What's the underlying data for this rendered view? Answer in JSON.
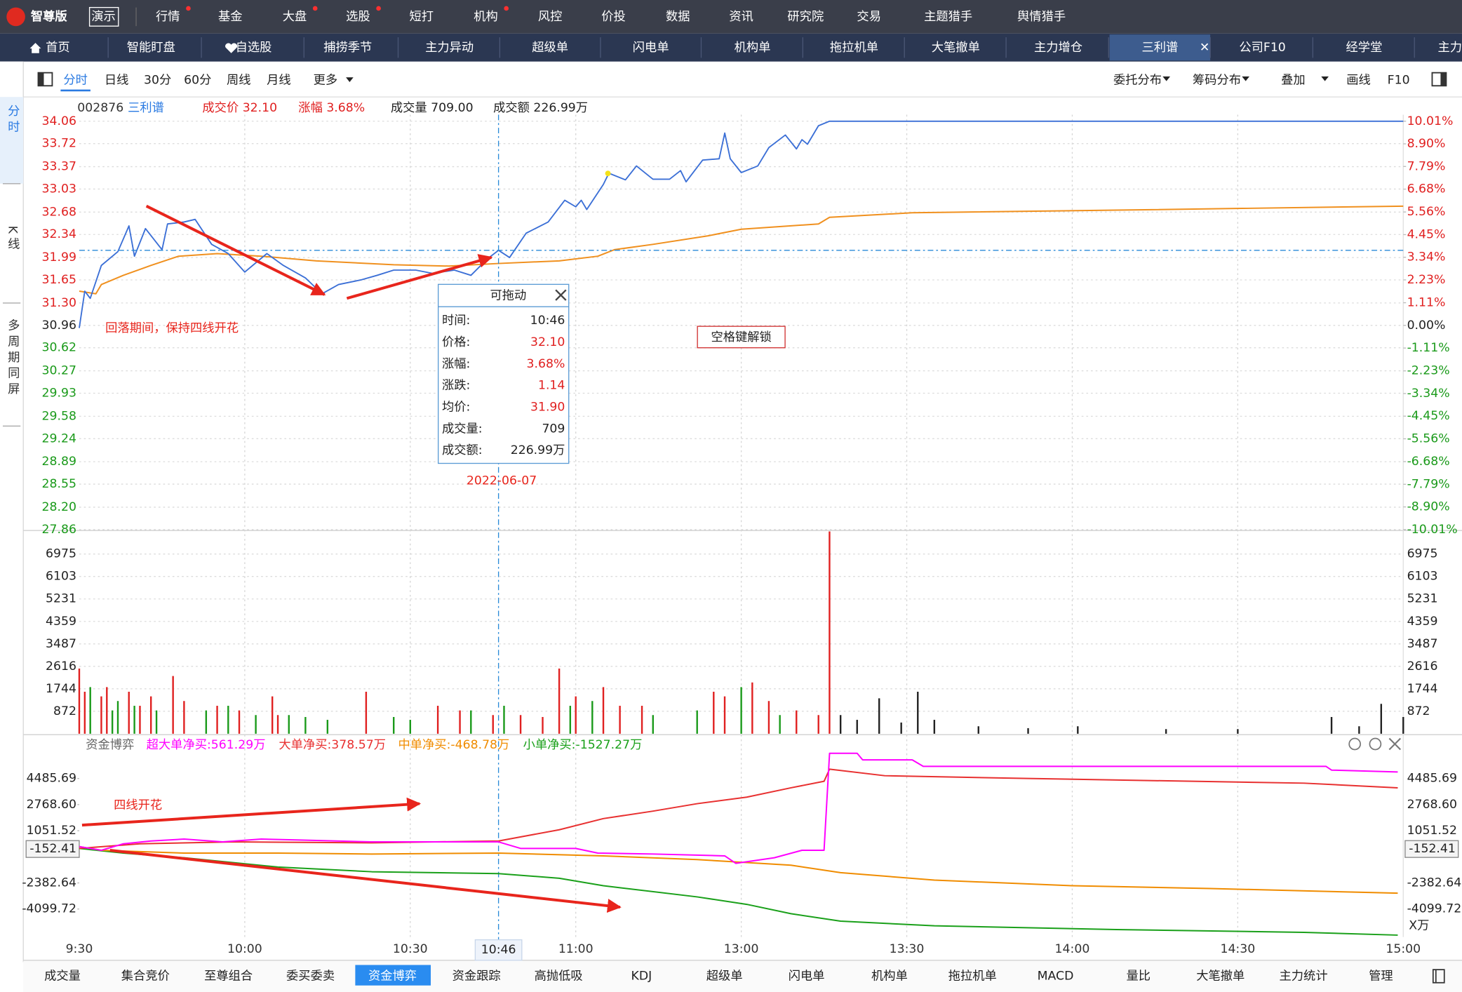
{
  "menu": {
    "logo": "智尊版",
    "badge": "演示",
    "items": [
      {
        "label": "行情",
        "dot": true
      },
      {
        "label": "基金"
      },
      {
        "label": "大盘",
        "dot": true
      },
      {
        "label": "选股",
        "dot": true
      },
      {
        "label": "短打"
      },
      {
        "label": "机构",
        "dot": true
      },
      {
        "label": "风控"
      },
      {
        "label": "价投"
      },
      {
        "label": "数据"
      },
      {
        "label": "资讯"
      },
      {
        "label": "研究院"
      },
      {
        "label": "交易"
      },
      {
        "label": "主题猎手"
      },
      {
        "label": "舆情猎手"
      }
    ]
  },
  "tabs": {
    "items": [
      "首页",
      "智能盯盘",
      "自选股",
      "捕捞季节",
      "主力异动",
      "超级单",
      "闪电单",
      "机构单",
      "拖拉机单",
      "大笔撤单",
      "主力增仓",
      "三利谱",
      "公司F10",
      "经学堂",
      "主力"
    ],
    "active": 11
  },
  "toolbar": {
    "left": [
      "分时",
      "日线",
      "30分",
      "60分",
      "周线",
      "月线",
      "更多"
    ],
    "right": [
      "委托分布",
      "筹码分布",
      "叠加",
      "画线",
      "F10"
    ],
    "active": 0
  },
  "sidebar": [
    "分时",
    "K线",
    "多周期同屏"
  ],
  "info": {
    "code": "002876",
    "name": "三利谱",
    "price": "成交价 32.10",
    "change": "涨幅 3.68%",
    "volume": "成交量 709.00",
    "amount": "成交额 226.99万"
  },
  "price_chart": {
    "xlim": [
      0,
      240
    ],
    "ylim": [
      27.86,
      34.06
    ],
    "y2lim": [
      -10.01,
      10.01
    ],
    "yticks": [
      34.06,
      33.72,
      33.37,
      33.03,
      32.68,
      32.34,
      31.99,
      31.65,
      {
        "value": 31.3,
        "label": "31.30"
      },
      30.96,
      30.62,
      30.27,
      29.93,
      29.58,
      29.24,
      28.89,
      28.55,
      {
        "value": 28.2,
        "label": "28.20"
      },
      27.86
    ],
    "y2ticks": [
      {
        "value": 10.01,
        "label": "10.01%"
      },
      {
        "value": 8.9,
        "label": "8.90%"
      },
      {
        "value": 7.79,
        "label": "7.79%"
      },
      {
        "value": 6.68,
        "label": "6.68%"
      },
      {
        "value": 5.56,
        "label": "5.56%"
      },
      {
        "value": 4.45,
        "label": "4.45%"
      },
      {
        "value": 3.34,
        "label": "3.34%"
      },
      {
        "value": 2.23,
        "label": "2.23%"
      },
      {
        "value": 1.11,
        "label": "1.11%"
      },
      {
        "value": 0,
        "label": "0.00%"
      },
      {
        "value": -1.11,
        "label": "-1.11%"
      },
      {
        "value": -2.23,
        "label": "-2.23%"
      },
      {
        "value": -3.34,
        "label": "-3.34%"
      },
      {
        "value": -4.45,
        "label": "-4.45%"
      },
      {
        "value": -5.56,
        "label": "-5.56%"
      },
      {
        "value": -6.68,
        "label": "-6.68%"
      },
      {
        "value": -7.79,
        "label": "-7.79%"
      },
      {
        "value": -8.9,
        "label": "-8.90%"
      },
      {
        "value": -10.01,
        "label": "-10.01%"
      }
    ],
    "series": [
      {
        "color": "#3b6fd6",
        "x": [
          0,
          1,
          2,
          4,
          7,
          9,
          10,
          12,
          15,
          16,
          19,
          21,
          24,
          27,
          30,
          34,
          37,
          41,
          44,
          47,
          51,
          54,
          57,
          61,
          64,
          68,
          71,
          74,
          76,
          78,
          81,
          85,
          88,
          90,
          91,
          92,
          95,
          96,
          99,
          101,
          104,
          107,
          109,
          110,
          113,
          116,
          117,
          118,
          120,
          123,
          125,
          128,
          130,
          131,
          132,
          134,
          136,
          240
        ],
        "values": [
          30.92,
          31.48,
          31.37,
          31.87,
          32.08,
          32.47,
          32.01,
          32.43,
          32.11,
          32.5,
          32.53,
          32.57,
          32.19,
          32.05,
          31.77,
          32.05,
          31.87,
          31.68,
          31.44,
          31.58,
          31.65,
          31.72,
          31.8,
          31.8,
          31.75,
          31.8,
          31.72,
          31.97,
          32.1,
          31.99,
          32.36,
          32.53,
          32.86,
          32.76,
          32.86,
          32.72,
          33.1,
          33.27,
          33.17,
          33.38,
          33.18,
          33.18,
          33.31,
          33.14,
          33.47,
          33.49,
          33.88,
          33.49,
          33.28,
          33.38,
          33.66,
          33.85,
          33.64,
          33.78,
          33.71,
          33.99,
          34.06,
          34.06
        ]
      },
      {
        "color": "#f0901e",
        "x": [
          0,
          3,
          4,
          8,
          13,
          18,
          25,
          33,
          43,
          57,
          67,
          76,
          87,
          94,
          97,
          104,
          114,
          120,
          134,
          136,
          151,
          188,
          240
        ],
        "values": [
          31.48,
          31.44,
          31.58,
          31.72,
          31.87,
          32.01,
          32.05,
          32.01,
          31.94,
          31.88,
          31.86,
          31.9,
          31.94,
          32.01,
          32.11,
          32.19,
          32.32,
          32.42,
          32.5,
          32.6,
          32.67,
          32.71,
          32.77
        ]
      }
    ],
    "cursor_point": 28
  },
  "volume_chart": {
    "ylim": [
      0,
      7851
    ],
    "yticks": [
      6975,
      6103,
      5231,
      4359,
      3487,
      2616,
      1744,
      872
    ],
    "series": [
      {
        "color": "#e02020",
        "x": [
          0,
          1,
          4,
          5,
          9,
          11,
          13,
          17,
          19,
          25,
          29,
          35,
          36,
          52,
          65,
          69,
          75,
          80,
          84,
          87,
          90,
          95,
          98,
          102,
          115,
          117,
          122,
          125,
          130,
          134,
          136
        ],
        "values": [
          2530,
          1630,
          1450,
          1810,
          1630,
          1085,
          1450,
          2240,
          1270,
          1085,
          905,
          1450,
          725,
          1630,
          1085,
          905,
          725,
          725,
          650,
          2530,
          1450,
          1810,
          1085,
          1085,
          1630,
          1450,
          1990,
          1270,
          905,
          725,
          7850
        ]
      },
      {
        "color": "#1a9a1a",
        "x": [
          2,
          6,
          7,
          10,
          14,
          23,
          27,
          32,
          38,
          41,
          45,
          57,
          60,
          71,
          77,
          89,
          93,
          104,
          112,
          120,
          127
        ],
        "values": [
          1810,
          905,
          1270,
          1085,
          905,
          905,
          1085,
          725,
          725,
          650,
          540,
          650,
          540,
          905,
          1085,
          1085,
          1270,
          725,
          905,
          1810,
          725
        ]
      },
      {
        "color": "#222222",
        "x": [
          138,
          141,
          145,
          149,
          152,
          155,
          163,
          172,
          181,
          197,
          210,
          227,
          232,
          236,
          240
        ],
        "values": [
          725,
          540,
          1375,
          435,
          1630,
          540,
          290,
          217,
          290,
          180,
          180,
          650,
          290,
          1160,
          650
        ]
      }
    ]
  },
  "flow_chart": {
    "title": "资金博弈",
    "unit": "X万",
    "ylim": [
      -5939,
      6141
    ],
    "yticks": [
      4485.69,
      {
        "value": 2768.6,
        "label": "2768.60"
      },
      1051.52,
      -2382.64,
      -4099.72
    ],
    "current": -152.41,
    "series": [
      {
        "name": "超大单净买:561.29万",
        "color": "#ff00ff",
        "x": [
          0,
          4,
          8,
          13,
          19,
          26,
          33,
          40,
          53,
          76,
          80,
          90,
          94,
          104,
          117,
          119,
          126,
          131,
          135,
          136,
          141,
          142,
          151,
          153,
          226,
          227,
          239
        ],
        "values": [
          9,
          -236,
          193,
          377,
          500,
          316,
          500,
          438,
          316,
          316,
          -114,
          -114,
          -420,
          -481,
          -604,
          -1095,
          -727,
          -236,
          -236,
          6141,
          6141,
          5712,
          5712,
          5283,
          5283,
          5037,
          4914
        ]
      },
      {
        "name": "大单净买:378.57万",
        "color": "#e83030",
        "x": [
          0,
          11,
          28,
          53,
          76,
          87,
          95,
          104,
          112,
          121,
          129,
          135,
          136,
          146,
          172,
          222,
          239
        ],
        "values": [
          -114,
          193,
          316,
          255,
          377,
          1113,
          1849,
          2339,
          2830,
          3259,
          3872,
          4302,
          5099,
          4670,
          4486,
          4179,
          3872
        ]
      },
      {
        "name": "中单净买:-468.78万",
        "color": "#f08c00",
        "x": [
          0,
          4,
          19,
          36,
          53,
          76,
          95,
          112,
          129,
          138,
          155,
          180,
          205,
          239
        ],
        "values": [
          9,
          -236,
          -420,
          -420,
          -481,
          -420,
          -604,
          -850,
          -1217,
          -1708,
          -2198,
          -2566,
          -2750,
          -3057
        ]
      },
      {
        "name": "小单净买:-1527.27万",
        "color": "#1aa01a",
        "x": [
          0,
          8,
          19,
          36,
          53,
          76,
          87,
          95,
          112,
          121,
          129,
          138,
          155,
          188,
          222,
          239
        ],
        "values": [
          -114,
          -420,
          -727,
          -1340,
          -1647,
          -1769,
          -2076,
          -2566,
          -3302,
          -3793,
          -4406,
          -4897,
          -5203,
          -5448,
          -5632,
          -5816
        ]
      }
    ]
  },
  "time_axis": {
    "ticks": [
      {
        "value": 0,
        "label": "9:30"
      },
      {
        "value": 30,
        "label": "10:00"
      },
      {
        "value": 60,
        "label": "10:30"
      },
      {
        "value": 90,
        "label": "11:00"
      },
      {
        "value": 120,
        "label": "13:00"
      },
      {
        "value": 150,
        "label": "13:30"
      },
      {
        "value": 180,
        "label": "14:00"
      },
      {
        "value": 210,
        "label": "14:30"
      },
      {
        "value": 240,
        "label": "15:00"
      }
    ],
    "cursor": {
      "value": 76,
      "label": "10:46"
    }
  },
  "tooltip": {
    "title": "可拖动",
    "rows": [
      [
        "时间:",
        "10:46"
      ],
      [
        "价格:",
        "32.10"
      ],
      [
        "涨幅:",
        "3.68%"
      ],
      [
        "涨跌:",
        "1.14"
      ],
      [
        "均价:",
        "31.90"
      ],
      [
        "成交量:",
        "709"
      ],
      [
        "成交额:",
        "226.99万"
      ]
    ]
  },
  "annotations": {
    "main": "回落期间，保持四线开花",
    "flow": "四线开花",
    "date": "2022-06-07",
    "unlock": "空格键解锁"
  },
  "bottom_tabs": {
    "items": [
      "成交量",
      "集合竞价",
      "至尊组合",
      "委买委卖",
      "资金博弈",
      "资金跟踪",
      "高抛低吸",
      "KDJ",
      "超级单",
      "闪电单",
      "机构单",
      "拖拉机单",
      "MACD",
      "量比",
      "大笔撤单",
      "主力统计",
      "管理"
    ],
    "active": 4
  }
}
